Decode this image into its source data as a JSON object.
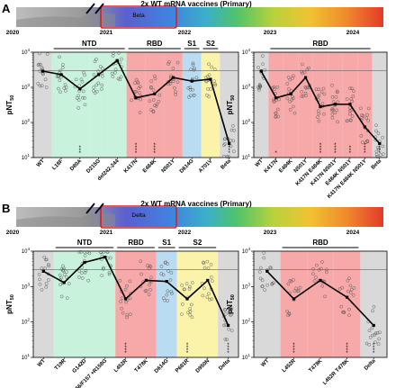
{
  "panels": [
    {
      "id": "A",
      "letter": "A",
      "banner": {
        "title": "2x WT mRNA vaccines (Primary)",
        "variant": "Beta",
        "years": [
          "2020",
          "2021",
          "2022",
          "2023",
          "2024"
        ]
      }
    },
    {
      "id": "B",
      "letter": "B",
      "banner": {
        "title": "2x WT mRNA vaccines (Primary)",
        "variant": "Delta",
        "years": [
          "2020",
          "2021",
          "2022",
          "2023",
          "2024"
        ]
      }
    }
  ],
  "colors": {
    "wt_bg": "#d9d9d9",
    "ntd_bg": "#c9f2dc",
    "rbd_bg": "#f7a8a8",
    "s1_bg": "#b9dcf2",
    "s2_bg": "#fbf3a9",
    "variant_bg": "#d9d9d9",
    "line": "#000000",
    "point": "#555555"
  },
  "chart_data": [
    {
      "type": "scatter",
      "panel": "A-left",
      "ylabel": "pNT50",
      "yscale": "log",
      "ylim": [
        10,
        10000
      ],
      "yticks": [
        "10^1",
        "10^2",
        "10^3",
        "10^4"
      ],
      "threshold": 3000,
      "categories": [
        "WT",
        "L18F",
        "D80A",
        "D215G",
        "del242-244",
        "K417N",
        "E484K",
        "N501Y",
        "D614G",
        "A701V",
        "Beta"
      ],
      "category_regions": [
        "wt",
        "ntd",
        "ntd",
        "ntd",
        "ntd",
        "rbd",
        "rbd",
        "rbd",
        "s1",
        "s2",
        "variant"
      ],
      "median": [
        2900,
        2300,
        900,
        2300,
        5800,
        500,
        650,
        1900,
        1500,
        1700,
        25
      ],
      "significance": [
        "",
        "",
        "***",
        "",
        "",
        "****",
        "****",
        "",
        "",
        "",
        "****"
      ],
      "domains": [
        {
          "label": "NTD",
          "from": 1,
          "to": 4
        },
        {
          "label": "RBD",
          "from": 5,
          "to": 7
        },
        {
          "label": "S1",
          "from": 8,
          "to": 8
        },
        {
          "label": "S2",
          "from": 9,
          "to": 9
        }
      ]
    },
    {
      "type": "scatter",
      "panel": "A-right",
      "ylabel": "pNT50",
      "yscale": "log",
      "ylim": [
        10,
        10000
      ],
      "yticks": [
        "10^1",
        "10^2",
        "10^3",
        "10^4"
      ],
      "threshold": 3000,
      "categories": [
        "WT",
        "K417N",
        "E484K",
        "N501Y",
        "K417N E484K",
        "K417N N501Y",
        "E484K N501Y",
        "K417N E484K N501Y",
        "Beta"
      ],
      "category_regions": [
        "wt",
        "rbd",
        "rbd",
        "rbd",
        "rbd",
        "rbd",
        "rbd",
        "rbd",
        "variant"
      ],
      "median": [
        2900,
        500,
        650,
        1900,
        280,
        330,
        330,
        75,
        25
      ],
      "significance": [
        "",
        "*",
        "",
        "",
        "****",
        "****",
        "***",
        "****",
        "****"
      ],
      "domains": [
        {
          "label": "RBD",
          "from": 1,
          "to": 7
        }
      ]
    },
    {
      "type": "scatter",
      "panel": "B-left",
      "ylabel": "pNT50",
      "yscale": "log",
      "ylim": [
        10,
        10000
      ],
      "yticks": [
        "10^1",
        "10^2",
        "10^3",
        "10^4"
      ],
      "threshold": 3000,
      "categories": [
        "WT",
        "T19R",
        "G142D",
        "ΔE156/F157 +R158G",
        "L452R",
        "T478K",
        "D614G",
        "P681R",
        "D950N",
        "Delta"
      ],
      "category_regions": [
        "wt",
        "ntd",
        "ntd",
        "ntd",
        "rbd",
        "rbd",
        "s1",
        "s2",
        "s2",
        "variant"
      ],
      "median": [
        2700,
        1300,
        4800,
        6800,
        450,
        1500,
        1400,
        450,
        1500,
        80
      ],
      "significance": [
        "",
        "",
        "",
        "",
        "****",
        "",
        "",
        "****",
        "",
        "****"
      ],
      "domains": [
        {
          "label": "NTD",
          "from": 1,
          "to": 3
        },
        {
          "label": "RBD",
          "from": 4,
          "to": 5
        },
        {
          "label": "S1",
          "from": 6,
          "to": 6
        },
        {
          "label": "S2",
          "from": 7,
          "to": 8
        }
      ]
    },
    {
      "type": "scatter",
      "panel": "B-right",
      "ylabel": "pNT50",
      "yscale": "log",
      "ylim": [
        10,
        10000
      ],
      "yticks": [
        "10^1",
        "10^2",
        "10^3",
        "10^4"
      ],
      "threshold": 3000,
      "categories": [
        "WT",
        "L452R",
        "T478K",
        "L452R T478K",
        "Delta"
      ],
      "category_regions": [
        "wt",
        "rbd",
        "rbd",
        "rbd",
        "variant"
      ],
      "median": [
        2700,
        450,
        1500,
        500,
        80
      ],
      "significance": [
        "",
        "****",
        "",
        "****",
        "****"
      ],
      "domains": [
        {
          "label": "RBD",
          "from": 1,
          "to": 3
        }
      ]
    }
  ]
}
